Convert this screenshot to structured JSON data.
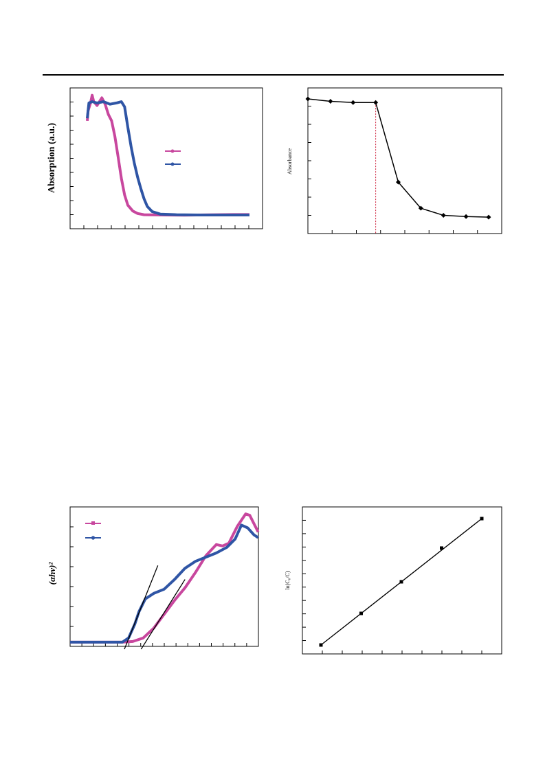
{
  "chart_data": [
    {
      "type": "line",
      "ylabel": "Absorption (a.u.)",
      "series": [
        {
          "color": "#c8479e",
          "points": [
            [
              0.0,
              0.78
            ],
            [
              0.005,
              0.86
            ],
            [
              0.02,
              0.92
            ],
            [
              0.03,
              0.98
            ],
            [
              0.04,
              0.93
            ],
            [
              0.06,
              0.9
            ],
            [
              0.09,
              0.96
            ],
            [
              0.11,
              0.91
            ],
            [
              0.13,
              0.83
            ],
            [
              0.15,
              0.78
            ],
            [
              0.17,
              0.66
            ],
            [
              0.19,
              0.5
            ],
            [
              0.21,
              0.33
            ],
            [
              0.23,
              0.2
            ],
            [
              0.25,
              0.12
            ],
            [
              0.28,
              0.075
            ],
            [
              0.31,
              0.055
            ],
            [
              0.35,
              0.045
            ],
            [
              0.45,
              0.043
            ],
            [
              0.6,
              0.042
            ],
            [
              0.75,
              0.044
            ],
            [
              0.9,
              0.046
            ],
            [
              1.0,
              0.046
            ]
          ]
        },
        {
          "color": "#2f55a5",
          "points": [
            [
              0.0,
              0.8
            ],
            [
              0.01,
              0.92
            ],
            [
              0.03,
              0.93
            ],
            [
              0.06,
              0.92
            ],
            [
              0.1,
              0.93
            ],
            [
              0.14,
              0.91
            ],
            [
              0.18,
              0.92
            ],
            [
              0.21,
              0.93
            ],
            [
              0.23,
              0.89
            ],
            [
              0.25,
              0.73
            ],
            [
              0.27,
              0.58
            ],
            [
              0.29,
              0.45
            ],
            [
              0.31,
              0.34
            ],
            [
              0.33,
              0.25
            ],
            [
              0.35,
              0.17
            ],
            [
              0.37,
              0.11
            ],
            [
              0.4,
              0.07
            ],
            [
              0.45,
              0.05
            ],
            [
              0.55,
              0.045
            ],
            [
              0.7,
              0.043
            ],
            [
              0.85,
              0.043
            ],
            [
              1.0,
              0.043
            ]
          ]
        }
      ]
    },
    {
      "type": "line",
      "ylabel": "Absorbance",
      "x": [
        0,
        1,
        2,
        3,
        4,
        5,
        6,
        7,
        8
      ],
      "series": [
        {
          "values": [
            1.0,
            0.98,
            0.97,
            0.97,
            0.3,
            0.08,
            0.02,
            0.01,
            0.005
          ]
        }
      ],
      "marker_x": 3
    },
    {
      "type": "line",
      "ylabel": "(αhν)²",
      "series": [
        {
          "color": "#c8479e",
          "points": [
            [
              0.0,
              0.03
            ],
            [
              0.25,
              0.03
            ],
            [
              0.3,
              0.035
            ],
            [
              0.35,
              0.06
            ],
            [
              0.4,
              0.13
            ],
            [
              0.45,
              0.23
            ],
            [
              0.5,
              0.33
            ],
            [
              0.55,
              0.42
            ],
            [
              0.6,
              0.53
            ],
            [
              0.65,
              0.65
            ],
            [
              0.7,
              0.73
            ],
            [
              0.73,
              0.72
            ],
            [
              0.76,
              0.74
            ],
            [
              0.8,
              0.86
            ],
            [
              0.84,
              0.95
            ],
            [
              0.86,
              0.94
            ],
            [
              0.88,
              0.88
            ],
            [
              0.9,
              0.82
            ]
          ]
        },
        {
          "color": "#2f55a5",
          "points": [
            [
              0.0,
              0.03
            ],
            [
              0.25,
              0.03
            ],
            [
              0.28,
              0.06
            ],
            [
              0.31,
              0.16
            ],
            [
              0.33,
              0.25
            ],
            [
              0.36,
              0.34
            ],
            [
              0.4,
              0.38
            ],
            [
              0.45,
              0.41
            ],
            [
              0.5,
              0.48
            ],
            [
              0.55,
              0.56
            ],
            [
              0.6,
              0.61
            ],
            [
              0.65,
              0.64
            ],
            [
              0.7,
              0.67
            ],
            [
              0.75,
              0.71
            ],
            [
              0.79,
              0.77
            ],
            [
              0.82,
              0.87
            ],
            [
              0.85,
              0.85
            ],
            [
              0.88,
              0.8
            ],
            [
              0.9,
              0.78
            ]
          ]
        }
      ],
      "tangents": [
        {
          "from": [
            0.26,
            -0.02
          ],
          "to": [
            0.42,
            0.58
          ]
        },
        {
          "from": [
            0.34,
            -0.02
          ],
          "to": [
            0.55,
            0.48
          ]
        }
      ]
    },
    {
      "type": "line",
      "ylabel": "ln(C₀/C)",
      "x": [
        0,
        1,
        2,
        3,
        4
      ],
      "series": [
        {
          "values": [
            0.0,
            0.75,
            1.5,
            2.3,
            3.0
          ]
        }
      ],
      "fit": [
        [
          0,
          0.0
        ],
        [
          4,
          3.0
        ]
      ]
    }
  ]
}
